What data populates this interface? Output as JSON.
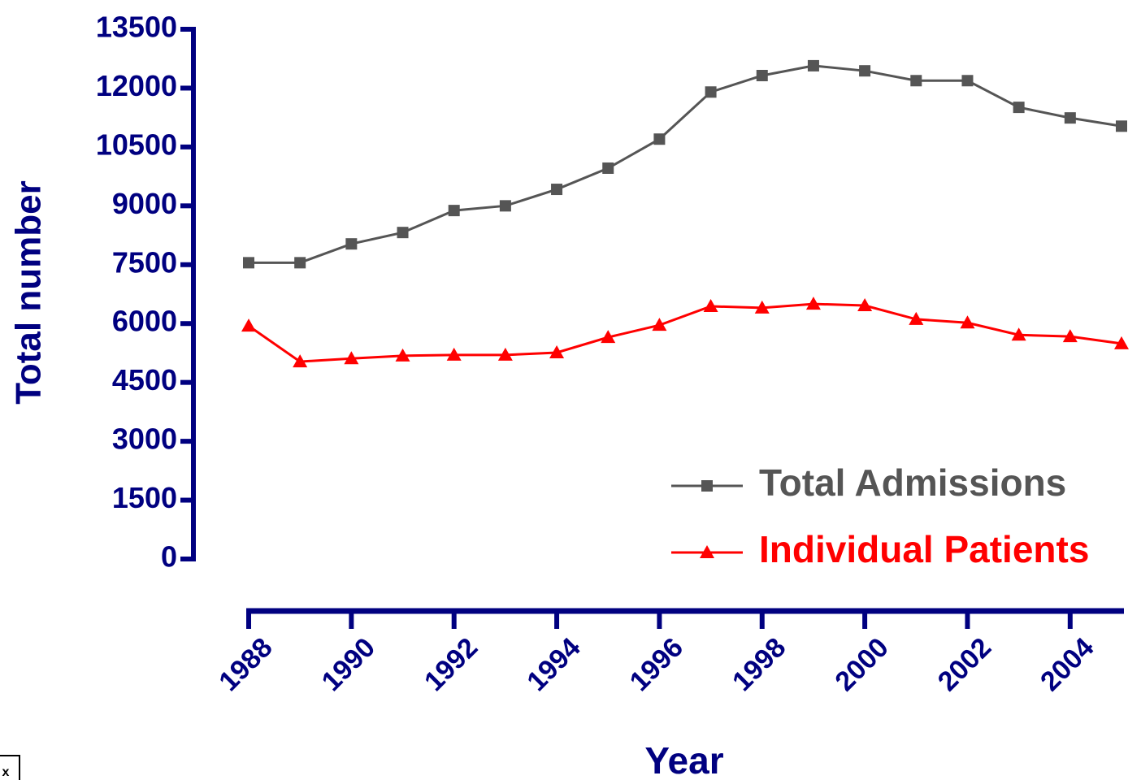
{
  "chart_data": {
    "type": "line",
    "x": [
      1988,
      1989,
      1990,
      1991,
      1992,
      1993,
      1994,
      1995,
      1996,
      1997,
      1998,
      1999,
      2000,
      2001,
      2002,
      2003,
      2004,
      2005
    ],
    "xlim": [
      1988,
      2005
    ],
    "xticks": [
      1988,
      1990,
      1992,
      1994,
      1996,
      1998,
      2000,
      2002,
      2004
    ],
    "ylim": [
      0,
      13500
    ],
    "yticks": [
      0,
      1500,
      3000,
      4500,
      6000,
      7500,
      9000,
      10500,
      12000,
      13500
    ],
    "x_label": "Year",
    "y_label": "Total number",
    "axis_color": "#000080",
    "legend": "lower right",
    "corner_mark": "x",
    "series": [
      {
        "name": "Total Admissions",
        "color": "#555555",
        "marker": "square",
        "values": [
          7550,
          7550,
          8030,
          8320,
          8880,
          9000,
          9420,
          9960,
          10700,
          11900,
          12320,
          12570,
          12440,
          12190,
          12190,
          11510,
          11240,
          11030
        ]
      },
      {
        "name": "Individual Patients",
        "color": "#ff0000",
        "marker": "triangle",
        "values": [
          5940,
          5030,
          5110,
          5180,
          5200,
          5200,
          5260,
          5650,
          5960,
          6440,
          6400,
          6500,
          6460,
          6110,
          6020,
          5710,
          5670,
          5490
        ]
      }
    ]
  }
}
